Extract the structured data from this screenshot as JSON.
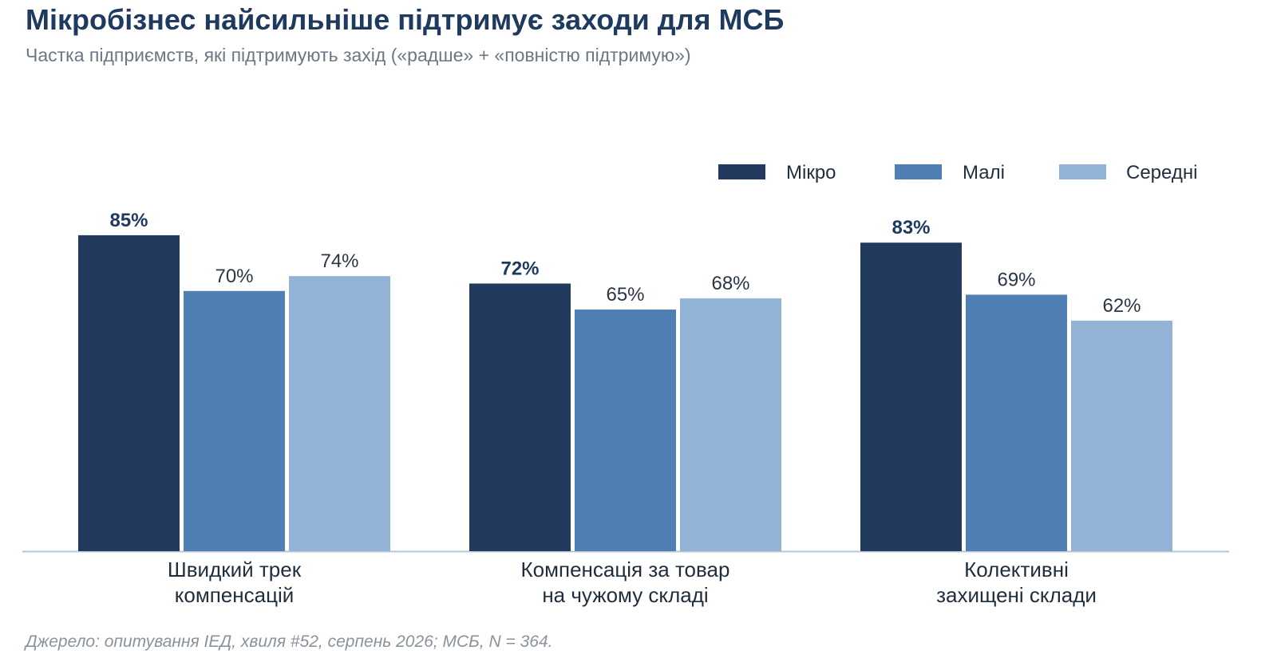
{
  "header": {
    "title": "Мікробізнес найсильніше підтримує заходи для МСБ",
    "subtitle": "Частка підприємств, які підтримують захід («радше» + «повністю підтримую»)"
  },
  "footer": {
    "source": "Джерело: опитування ІЕД, хвиля #52, серпень 2026; МСБ, N = 364."
  },
  "chart_data": {
    "type": "bar",
    "categories": [
      [
        "Швидкий трек",
        "компенсацій"
      ],
      [
        "Компенсація за товар",
        "на чужому складі"
      ],
      [
        "Колективні",
        "захищені склади"
      ]
    ],
    "series": [
      {
        "name": "Мікро",
        "color": "#213a5e",
        "values": [
          85,
          72,
          83
        ],
        "value_labels": [
          "85%",
          "72%",
          "83%"
        ],
        "label_bold": true
      },
      {
        "name": "Малі",
        "color": "#4f7fb3",
        "values": [
          70,
          65,
          69
        ],
        "value_labels": [
          "70%",
          "65%",
          "69%"
        ],
        "label_bold": false
      },
      {
        "name": "Середні",
        "color": "#92b2d6",
        "values": [
          74,
          68,
          62
        ],
        "value_labels": [
          "74%",
          "68%",
          "62%"
        ],
        "label_bold": false
      }
    ],
    "ylim": [
      0,
      100
    ],
    "grid": false,
    "legend_position": "top-right",
    "axis_color": "#b8c6d6"
  }
}
